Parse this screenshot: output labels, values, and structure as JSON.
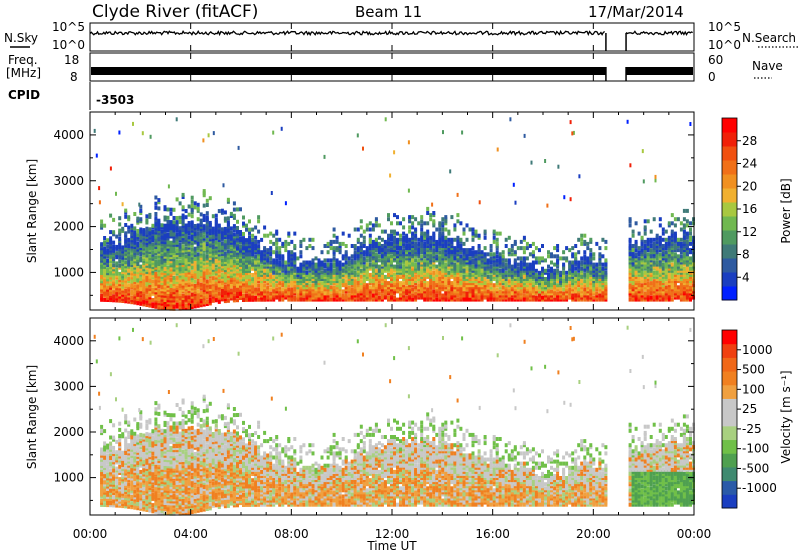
{
  "header": {
    "station": "Clyde River (fitACF)",
    "beam": "Beam 11",
    "date": "17/Mar/2014"
  },
  "chart_data": [
    {
      "type": "line",
      "name": "noise-panel",
      "left_label": "N.Sky",
      "right_label": "N.Search",
      "left_ticks": [
        "10^5",
        "10^0"
      ],
      "right_ticks": [
        "10^5",
        "10^0"
      ],
      "gap_hours": [
        20.5,
        21.3
      ]
    },
    {
      "type": "line",
      "name": "freq-nave-panel",
      "left_label_1": "Freq.",
      "left_label_2": "[MHz]",
      "right_label": "Nave",
      "left_ticks": [
        "18",
        "8"
      ],
      "right_ticks": [
        "60",
        "0"
      ]
    },
    {
      "type": "table",
      "name": "cpid",
      "label": "CPID",
      "value": "-3503"
    },
    {
      "type": "heatmap",
      "name": "power-panel",
      "ylabel": "Slant Range [km]",
      "y_ticks": [
        "4000",
        "3000",
        "2000",
        "1000"
      ],
      "y_tick_values": [
        4000,
        3000,
        2000,
        1000
      ],
      "ylim": [
        180,
        4500
      ],
      "colorbar_label": "Power [dB]",
      "colorbar_ticks": [
        "28",
        "24",
        "20",
        "16",
        "12",
        "8",
        "4"
      ],
      "colorbar_colors": [
        "#0020ff",
        "#1a3ec0",
        "#2e5aa0",
        "#3f7a78",
        "#4f9a60",
        "#70b850",
        "#a8c840",
        "#f0b030",
        "#f09020",
        "#f07018",
        "#f05010",
        "#f02008",
        "#ff0000"
      ]
    },
    {
      "type": "heatmap",
      "name": "velocity-panel",
      "ylabel": "Slant Range [km]",
      "y_ticks": [
        "4000",
        "3000",
        "2000",
        "1000"
      ],
      "y_tick_values": [
        4000,
        3000,
        2000,
        1000
      ],
      "ylim": [
        180,
        4500
      ],
      "colorbar_label": "Velocity [m s⁻¹]",
      "colorbar_ticks": [
        "1000",
        "500",
        "100",
        "25",
        "-25",
        "-100",
        "-500",
        "-1000"
      ],
      "colorbar_colors": [
        "#1a3ec0",
        "#2a5aa8",
        "#3f8a70",
        "#4fa050",
        "#70c048",
        "#a8d080",
        "#c8c8c8",
        "#c8c8c8",
        "#f0a040",
        "#f08020",
        "#f06818",
        "#f04010",
        "#ff0000"
      ]
    }
  ],
  "xaxis": {
    "title": "Time UT",
    "ticks": [
      "00:00",
      "04:00",
      "08:00",
      "12:00",
      "16:00",
      "20:00",
      "00:00"
    ],
    "tick_hours": [
      0,
      4,
      8,
      12,
      16,
      20,
      24
    ]
  }
}
